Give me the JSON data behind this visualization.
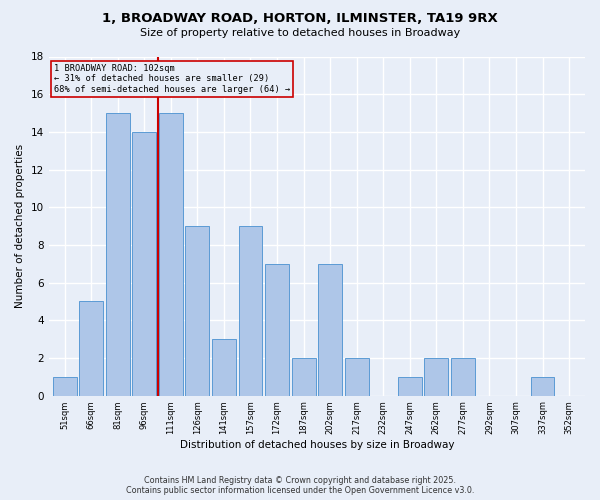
{
  "title": "1, BROADWAY ROAD, HORTON, ILMINSTER, TA19 9RX",
  "subtitle": "Size of property relative to detached houses in Broadway",
  "xlabel": "Distribution of detached houses by size in Broadway",
  "ylabel": "Number of detached properties",
  "footer_line1": "Contains HM Land Registry data © Crown copyright and database right 2025.",
  "footer_line2": "Contains public sector information licensed under the Open Government Licence v3.0.",
  "categories": [
    "51sqm",
    "66sqm",
    "81sqm",
    "96sqm",
    "111sqm",
    "126sqm",
    "141sqm",
    "157sqm",
    "172sqm",
    "187sqm",
    "202sqm",
    "217sqm",
    "232sqm",
    "247sqm",
    "262sqm",
    "277sqm",
    "292sqm",
    "307sqm",
    "337sqm",
    "352sqm"
  ],
  "values": [
    1,
    5,
    15,
    14,
    15,
    9,
    3,
    9,
    7,
    2,
    7,
    2,
    0,
    1,
    2,
    2,
    0,
    0,
    1,
    0
  ],
  "bar_color": "#aec6e8",
  "bar_edge_color": "#5b9bd5",
  "background_color": "#e8eef8",
  "grid_color": "#ffffff",
  "annotation_text": "1 BROADWAY ROAD: 102sqm\n← 31% of detached houses are smaller (29)\n68% of semi-detached houses are larger (64) →",
  "redline_x": 3.5,
  "annotation_box_edge": "#cc0000",
  "redline_color": "#cc0000",
  "ylim": [
    0,
    18
  ],
  "yticks": [
    0,
    2,
    4,
    6,
    8,
    10,
    12,
    14,
    16,
    18
  ]
}
